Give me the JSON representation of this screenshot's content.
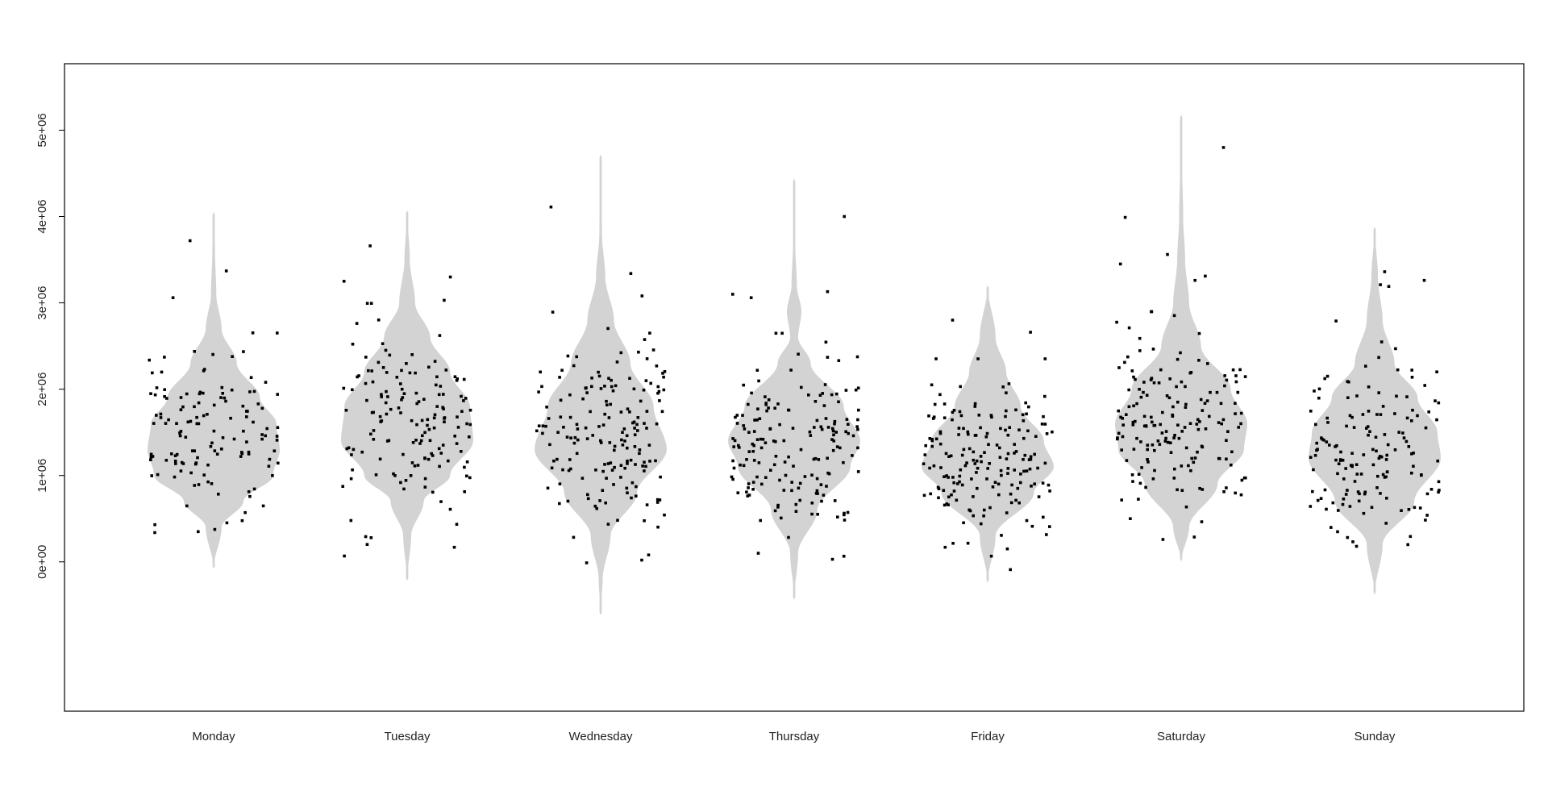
{
  "chart_data": {
    "type": "violin",
    "title": "",
    "xlabel": "",
    "ylabel": "",
    "categories": [
      "Monday",
      "Tuesday",
      "Wednesday",
      "Thursday",
      "Friday",
      "Saturday",
      "Sunday"
    ],
    "ylim": [
      -1730000,
      5770000
    ],
    "yticks": [
      0,
      1000000,
      2000000,
      3000000,
      4000000,
      5000000
    ],
    "ytick_labels": [
      "0e+00",
      "1e+06",
      "2e+06",
      "3e+06",
      "4e+06",
      "5e+06"
    ],
    "grid": false,
    "legend": "none",
    "violin_color": "#d3d3d3",
    "point_color": "#000000",
    "violins": [
      {
        "category": "Monday",
        "range": [
          -80000,
          4050000
        ],
        "profile": [
          [
            -80000,
            0.0
          ],
          [
            400000,
            0.12
          ],
          [
            700000,
            0.45
          ],
          [
            1000000,
            0.9
          ],
          [
            1300000,
            1.0
          ],
          [
            1600000,
            0.95
          ],
          [
            1900000,
            0.7
          ],
          [
            2300000,
            0.35
          ],
          [
            2700000,
            0.12
          ],
          [
            3100000,
            0.04
          ],
          [
            3600000,
            0.02
          ],
          [
            4050000,
            0.0
          ]
        ],
        "n_points": 130,
        "center": 1500000,
        "spread": 480000,
        "outliers": [
          3720000,
          3370000,
          3060000,
          2650000,
          430000,
          350000
        ]
      },
      {
        "category": "Tuesday",
        "range": [
          -220000,
          4070000
        ],
        "profile": [
          [
            -220000,
            0.0
          ],
          [
            300000,
            0.06
          ],
          [
            700000,
            0.25
          ],
          [
            1000000,
            0.65
          ],
          [
            1400000,
            1.0
          ],
          [
            1800000,
            0.95
          ],
          [
            2200000,
            0.65
          ],
          [
            2600000,
            0.35
          ],
          [
            3000000,
            0.12
          ],
          [
            3500000,
            0.04
          ],
          [
            4070000,
            0.0
          ]
        ],
        "n_points": 150,
        "center": 1650000,
        "spread": 560000,
        "outliers": [
          3660000,
          3300000,
          3250000,
          3030000,
          280000
        ]
      },
      {
        "category": "Wednesday",
        "range": [
          -620000,
          4720000
        ],
        "profile": [
          [
            -620000,
            0.0
          ],
          [
            -200000,
            0.03
          ],
          [
            300000,
            0.15
          ],
          [
            800000,
            0.55
          ],
          [
            1300000,
            1.0
          ],
          [
            1800000,
            0.8
          ],
          [
            2300000,
            0.45
          ],
          [
            2800000,
            0.2
          ],
          [
            3300000,
            0.07
          ],
          [
            3800000,
            0.02
          ],
          [
            4300000,
            0.012
          ],
          [
            4720000,
            0.0
          ]
        ],
        "n_points": 170,
        "center": 1500000,
        "spread": 580000,
        "outliers": [
          4110000,
          3340000,
          3080000,
          80000,
          20000
        ]
      },
      {
        "category": "Thursday",
        "range": [
          -440000,
          4440000
        ],
        "profile": [
          [
            -440000,
            0.0
          ],
          [
            100000,
            0.06
          ],
          [
            600000,
            0.35
          ],
          [
            1100000,
            0.85
          ],
          [
            1400000,
            1.0
          ],
          [
            1800000,
            0.75
          ],
          [
            2300000,
            0.25
          ],
          [
            2600000,
            0.06
          ],
          [
            2900000,
            0.11
          ],
          [
            3200000,
            0.04
          ],
          [
            3700000,
            0.015
          ],
          [
            4440000,
            0.0
          ]
        ],
        "n_points": 170,
        "center": 1400000,
        "spread": 520000,
        "outliers": [
          4000000,
          3130000,
          3100000,
          3060000,
          30000,
          100000
        ]
      },
      {
        "category": "Friday",
        "range": [
          -240000,
          3200000
        ],
        "profile": [
          [
            -240000,
            0.0
          ],
          [
            300000,
            0.12
          ],
          [
            800000,
            0.7
          ],
          [
            1100000,
            1.0
          ],
          [
            1400000,
            0.85
          ],
          [
            1800000,
            0.5
          ],
          [
            2200000,
            0.28
          ],
          [
            2600000,
            0.12
          ],
          [
            3200000,
            0.0
          ]
        ],
        "n_points": 180,
        "center": 1200000,
        "spread": 480000,
        "outliers": [
          2800000,
          2660000,
          150000
        ]
      },
      {
        "category": "Saturday",
        "range": [
          0,
          5180000
        ],
        "profile": [
          [
            0,
            0.0
          ],
          [
            400000,
            0.12
          ],
          [
            900000,
            0.55
          ],
          [
            1300000,
            0.95
          ],
          [
            1600000,
            1.0
          ],
          [
            2000000,
            0.75
          ],
          [
            2500000,
            0.3
          ],
          [
            3000000,
            0.12
          ],
          [
            3500000,
            0.06
          ],
          [
            4000000,
            0.03
          ],
          [
            4600000,
            0.015
          ],
          [
            5180000,
            0.0
          ]
        ],
        "n_points": 170,
        "center": 1650000,
        "spread": 520000,
        "outliers": [
          4800000,
          3990000,
          3560000,
          3450000,
          3310000,
          3260000,
          500000
        ]
      },
      {
        "category": "Sunday",
        "range": [
          -380000,
          3880000
        ],
        "profile": [
          [
            -380000,
            0.0
          ],
          [
            200000,
            0.12
          ],
          [
            700000,
            0.6
          ],
          [
            1200000,
            1.0
          ],
          [
            1500000,
            0.95
          ],
          [
            1900000,
            0.65
          ],
          [
            2300000,
            0.3
          ],
          [
            2800000,
            0.12
          ],
          [
            3300000,
            0.05
          ],
          [
            3880000,
            0.0
          ]
        ],
        "n_points": 150,
        "center": 1300000,
        "spread": 520000,
        "outliers": [
          3360000,
          3260000,
          3210000,
          3190000,
          2790000,
          180000,
          200000
        ]
      }
    ]
  }
}
